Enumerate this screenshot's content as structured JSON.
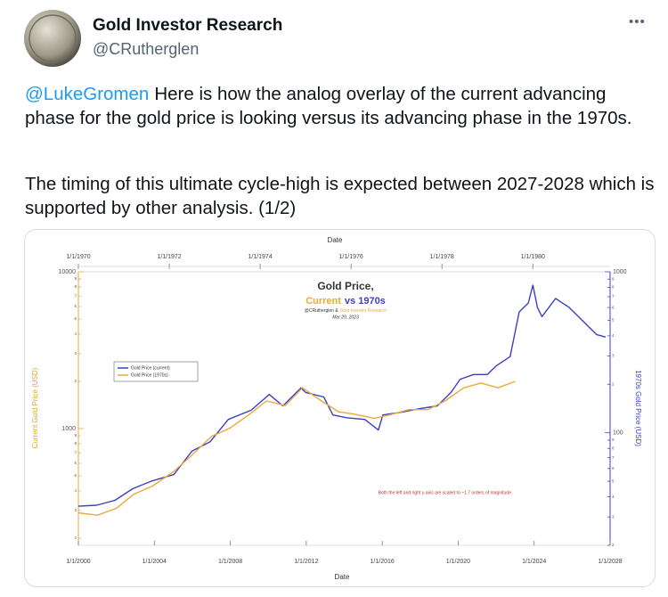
{
  "header": {
    "name": "Gold Investor Research",
    "handle": "@CRutherglen",
    "menu": "•••"
  },
  "text": {
    "paragraphs": [
      {
        "mention": "@LukeGromen",
        "body": "Here is how the analog overlay of the current advancing phase for the gold price is looking versus its advancing phase in the 1970s."
      },
      {
        "body": "The timing of this ultimate cycle-high is expected between 2027-2028 which is supported by other analysis. (1/2)"
      }
    ]
  },
  "chart_data": {
    "type": "line",
    "title": {
      "line1": "Gold Price,",
      "current": "Current",
      "vs": "vs 1970s"
    },
    "subtitle": {
      "author": "@CRutherglen &",
      "org": "Gold Investor Research",
      "date": "Mar 29, 2023"
    },
    "xlabel": "Date",
    "x2label": "Date",
    "ylabel": "Current Gold Price (USD)",
    "y2label": "1970s Gold Price (USD)",
    "annotation": "Both the left and right y-axis are scaled to ~1.7 orders of magnitude.",
    "log_scale": true,
    "grid": false,
    "legend_position": "upper left",
    "xlim": [
      2000,
      2028
    ],
    "xticks": [
      {
        "value": 2000,
        "label": "1/1/2000"
      },
      {
        "value": 2004,
        "label": "1/1/2004"
      },
      {
        "value": 2008,
        "label": "1/1/2008"
      },
      {
        "value": 2012,
        "label": "1/1/2012"
      },
      {
        "value": 2016,
        "label": "1/1/2016"
      },
      {
        "value": 2020,
        "label": "1/1/2020"
      },
      {
        "value": 2024,
        "label": "1/1/2024"
      },
      {
        "value": 2028,
        "label": "1/1/2028"
      }
    ],
    "x2lim": [
      1970,
      1981.7
    ],
    "x2ticks": [
      {
        "value": 1970,
        "label": "1/1/1970"
      },
      {
        "value": 1972,
        "label": "1/1/1972"
      },
      {
        "value": 1974,
        "label": "1/1/1974"
      },
      {
        "value": 1976,
        "label": "1/1/1976"
      },
      {
        "value": 1978,
        "label": "1/1/1978"
      },
      {
        "value": 1980,
        "label": "1/1/1980"
      }
    ],
    "ylim": [
      180,
      10000
    ],
    "yticks": [
      {
        "value": 200,
        "label": "2"
      },
      {
        "value": 300,
        "label": "3"
      },
      {
        "value": 400,
        "label": "4"
      },
      {
        "value": 500,
        "label": "5"
      },
      {
        "value": 600,
        "label": "6"
      },
      {
        "value": 700,
        "label": "7"
      },
      {
        "value": 800,
        "label": "8"
      },
      {
        "value": 900,
        "label": "9"
      },
      1000,
      {
        "value": 2000,
        "label": "2"
      },
      {
        "value": 3000,
        "label": "3"
      },
      {
        "value": 4000,
        "label": "4"
      },
      {
        "value": 5000,
        "label": "5"
      },
      {
        "value": 6000,
        "label": "6"
      },
      {
        "value": 7000,
        "label": "7"
      },
      {
        "value": 8000,
        "label": "8"
      },
      {
        "value": 9000,
        "label": "9"
      },
      10000
    ],
    "y2lim": [
      20,
      1000
    ],
    "y2ticks": [
      {
        "value": 20,
        "label": "2"
      },
      {
        "value": 30,
        "label": "3"
      },
      {
        "value": 40,
        "label": "4"
      },
      {
        "value": 50,
        "label": "5"
      },
      {
        "value": 60,
        "label": "6"
      },
      {
        "value": 70,
        "label": "7"
      },
      {
        "value": 80,
        "label": "8"
      },
      {
        "value": 90,
        "label": "9"
      },
      100,
      {
        "value": 200,
        "label": "2"
      },
      {
        "value": 300,
        "label": "3"
      },
      {
        "value": 400,
        "label": "4"
      },
      {
        "value": 500,
        "label": "5"
      },
      {
        "value": 600,
        "label": "6"
      },
      {
        "value": 700,
        "label": "7"
      },
      {
        "value": 800,
        "label": "8"
      },
      {
        "value": 900,
        "label": "9"
      },
      1000
    ],
    "series": [
      {
        "name": "Gold Price (current)",
        "color": "#3b3fc6",
        "axis": "y2",
        "x_axis": "x2",
        "x": [
          1970.0,
          1970.4,
          1970.8,
          1971.2,
          1971.6,
          1972.1,
          1972.5,
          1972.9,
          1973.3,
          1973.8,
          1974.2,
          1974.5,
          1974.9,
          1975.0,
          1975.4,
          1975.6,
          1975.9,
          1976.3,
          1976.6,
          1976.7,
          1977.1,
          1977.5,
          1977.9,
          1978.2,
          1978.4,
          1978.7,
          1979.0,
          1979.2,
          1979.5,
          1979.6,
          1979.7,
          1979.9,
          1980.0,
          1980.1,
          1980.2,
          1980.5,
          1980.8,
          1981.1,
          1981.4,
          1981.6
        ],
        "values": [
          35,
          35.5,
          38,
          45,
          50,
          55,
          77,
          88,
          121,
          138,
          173,
          147,
          190,
          178,
          167,
          129,
          124,
          121,
          104,
          129,
          134,
          141,
          147,
          178,
          215,
          230,
          230,
          261,
          297,
          408,
          563,
          640,
          826,
          600,
          527,
          682,
          600,
          495,
          408,
          393
        ]
      },
      {
        "name": "Gold Price (1970s)",
        "color": "#e9a93a",
        "axis": "y",
        "x_axis": "x",
        "x": [
          2000.0,
          2001.0,
          2002.0,
          2002.9,
          2003.9,
          2005.0,
          2006.0,
          2007.0,
          2008.0,
          2009.0,
          2009.9,
          2010.9,
          2011.8,
          2012.8,
          2013.7,
          2014.6,
          2015.6,
          2016.5,
          2017.4,
          2018.4,
          2019.3,
          2020.3,
          2021.2,
          2022.1,
          2023.0
        ],
        "values": [
          290,
          280,
          310,
          380,
          430,
          530,
          680,
          890,
          1010,
          1230,
          1500,
          1400,
          1820,
          1500,
          1280,
          1230,
          1160,
          1230,
          1320,
          1320,
          1500,
          1820,
          1950,
          1820,
          2000
        ]
      }
    ]
  }
}
